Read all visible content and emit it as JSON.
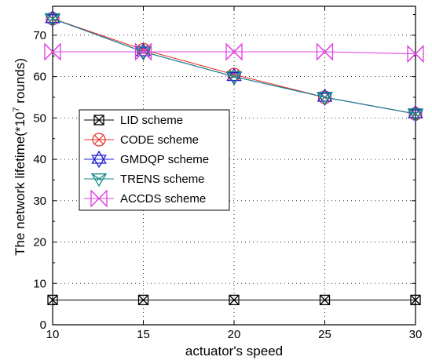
{
  "chart_data": {
    "type": "line",
    "xlabel": "actuator's speed",
    "ylabel": "The network lifetime(*10",
    "ylabel_superscript": "7",
    "ylabel_suffix": " rounds)",
    "x": [
      10,
      15,
      20,
      25,
      30
    ],
    "xlim": [
      10,
      30
    ],
    "ylim": [
      0,
      77
    ],
    "x_ticks": [
      "10",
      "15",
      "20",
      "25",
      "30"
    ],
    "y_ticks": [
      "0",
      "10",
      "20",
      "30",
      "40",
      "50",
      "60",
      "70"
    ],
    "grid": true,
    "legend_position": "center-left",
    "series": [
      {
        "name": "LID scheme",
        "values": [
          6,
          6,
          6,
          6,
          6
        ],
        "color": "#000000",
        "marker": "boxed-x"
      },
      {
        "name": "CODE scheme",
        "values": [
          74,
          66.5,
          60.5,
          55,
          51
        ],
        "color": "#e8352a",
        "marker": "circle-x"
      },
      {
        "name": "GMDQP scheme",
        "values": [
          74,
          66,
          60,
          55,
          51
        ],
        "color": "#1f1fd0",
        "marker": "star"
      },
      {
        "name": "TRENS scheme",
        "values": [
          74,
          66,
          60,
          55,
          51
        ],
        "color": "#1a8a8a",
        "marker": "triangle-down"
      },
      {
        "name": "ACCDS scheme",
        "values": [
          66,
          66,
          66,
          66,
          65.5
        ],
        "color": "#e040e0",
        "marker": "bowtie"
      }
    ]
  }
}
